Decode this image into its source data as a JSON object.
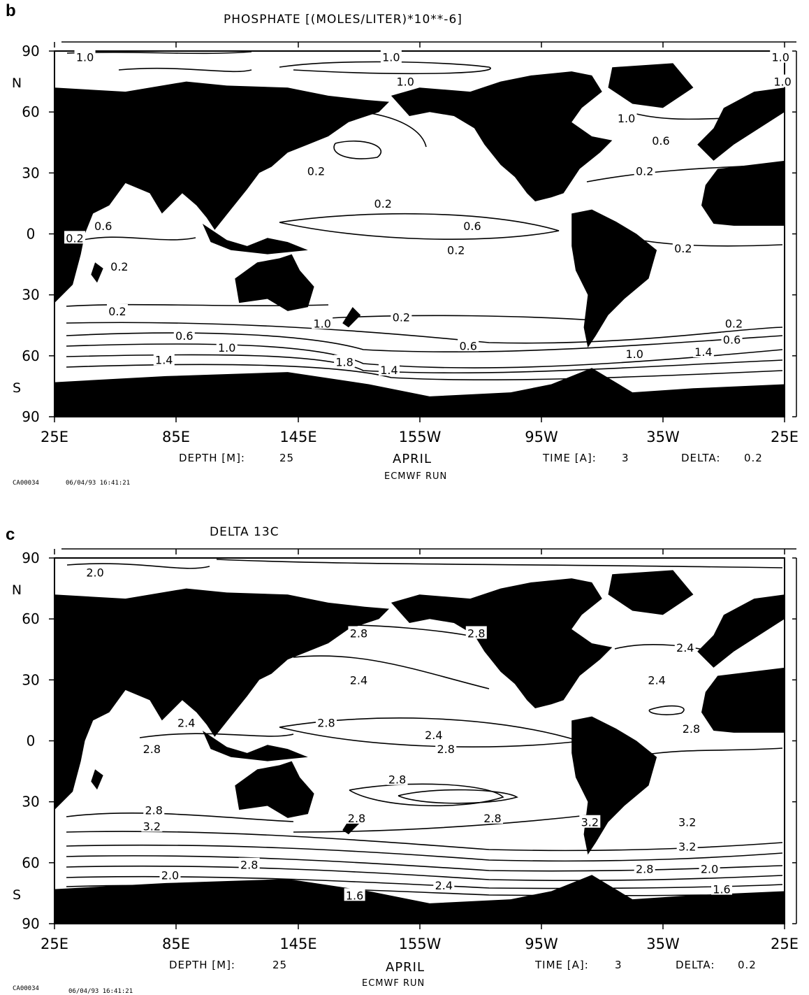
{
  "panels": [
    {
      "letter": "b",
      "title": "PHOSPHATE [(MOLES/LITER)*10**-6]",
      "footer": {
        "depth_label": "DEPTH [M]:",
        "depth_value": "25",
        "month": "APRIL",
        "time_label": "TIME [A]:",
        "time_value": "3",
        "delta_label": "DELTA:",
        "delta_value": "0.2",
        "run": "ECMWF RUN",
        "code": "CA00034",
        "timestamp": "06/04/93  16:41:21"
      }
    },
    {
      "letter": "c",
      "title": "DELTA 13C",
      "footer": {
        "depth_label": "DEPTH [M]:",
        "depth_value": "25",
        "month": "APRIL",
        "time_label": "TIME [A]:",
        "time_value": "3",
        "delta_label": "DELTA:",
        "delta_value": "0.2",
        "run": "ECMWF RUN",
        "code": "CA00034",
        "timestamp": "06/04/93  16:41:21"
      }
    }
  ],
  "chart_data": [
    {
      "type": "heatmap",
      "title": "PHOSPHATE [(MOLES/LITER)*10**-6]",
      "variable": "phosphate",
      "contour_interval": 0.2,
      "x_ticks": [
        "25E",
        "85E",
        "145E",
        "155W",
        "95W",
        "35W",
        "25E"
      ],
      "y_ticks": [
        "90",
        "60",
        "30",
        "0",
        "30",
        "60",
        "90"
      ],
      "y_hemisphere_labels": [
        "N",
        "S"
      ],
      "land_color": "#000000",
      "contour_labels": [
        {
          "lon": "40E",
          "lat": 87,
          "value": "1.0"
        },
        {
          "lon": "169W",
          "lat": 87,
          "value": "1.0"
        },
        {
          "lon": "23E",
          "lat": 87,
          "value": "1.0"
        },
        {
          "lon": "162W",
          "lat": 75,
          "value": "1.0"
        },
        {
          "lon": "24E",
          "lat": 75,
          "value": "1.0"
        },
        {
          "lon": "53W",
          "lat": 57,
          "value": "1.0"
        },
        {
          "lon": "36W",
          "lat": 46,
          "value": "0.6"
        },
        {
          "lon": "154E",
          "lat": 31,
          "value": "0.2"
        },
        {
          "lon": "44W",
          "lat": 31,
          "value": "0.2"
        },
        {
          "lon": "173W",
          "lat": 15,
          "value": "0.2"
        },
        {
          "lon": "49E",
          "lat": 4,
          "value": "0.6"
        },
        {
          "lon": "129W",
          "lat": 4,
          "value": "0.6"
        },
        {
          "lon": "35E",
          "lat": -2,
          "value": "0.2"
        },
        {
          "lon": "25W",
          "lat": -7,
          "value": "0.2"
        },
        {
          "lon": "137W",
          "lat": -8,
          "value": "0.2"
        },
        {
          "lon": "57E",
          "lat": -16,
          "value": "0.2"
        },
        {
          "lon": "56E",
          "lat": -38,
          "value": "0.2"
        },
        {
          "lon": "164W",
          "lat": -41,
          "value": "0.2"
        },
        {
          "lon": "0E",
          "lat": -44,
          "value": "0.2"
        },
        {
          "lon": "157E",
          "lat": -44,
          "value": "1.0"
        },
        {
          "lon": "89E",
          "lat": -50,
          "value": "0.6"
        },
        {
          "lon": "1W",
          "lat": -52,
          "value": "0.6"
        },
        {
          "lon": "131W",
          "lat": -55,
          "value": "0.6"
        },
        {
          "lon": "110E",
          "lat": -56,
          "value": "1.0"
        },
        {
          "lon": "49W",
          "lat": -59,
          "value": "1.0"
        },
        {
          "lon": "15W",
          "lat": -58,
          "value": "1.4"
        },
        {
          "lon": "79E",
          "lat": -62,
          "value": "1.4"
        },
        {
          "lon": "168E",
          "lat": -63,
          "value": "1.8"
        },
        {
          "lon": "170W",
          "lat": -67,
          "value": "1.4"
        }
      ]
    },
    {
      "type": "heatmap",
      "title": "DELTA 13C",
      "variable": "delta13C",
      "contour_interval": 0.2,
      "x_ticks": [
        "25E",
        "85E",
        "145E",
        "155W",
        "95W",
        "35W",
        "25E"
      ],
      "y_ticks": [
        "90",
        "60",
        "30",
        "0",
        "30",
        "60",
        "90"
      ],
      "y_hemisphere_labels": [
        "N",
        "S"
      ],
      "land_color": "#000000",
      "contour_labels": [
        {
          "lon": "45E",
          "lat": 83,
          "value": "2.0"
        },
        {
          "lon": "175E",
          "lat": 53,
          "value": "2.8"
        },
        {
          "lon": "127W",
          "lat": 53,
          "value": "2.8"
        },
        {
          "lon": "24W",
          "lat": 46,
          "value": "2.4"
        },
        {
          "lon": "175E",
          "lat": 30,
          "value": "2.4"
        },
        {
          "lon": "38W",
          "lat": 30,
          "value": "2.4"
        },
        {
          "lon": "21W",
          "lat": 6,
          "value": "2.8"
        },
        {
          "lon": "90E",
          "lat": 9,
          "value": "2.4"
        },
        {
          "lon": "159E",
          "lat": 9,
          "value": "2.8"
        },
        {
          "lon": "148W",
          "lat": 3,
          "value": "2.4"
        },
        {
          "lon": "142W",
          "lat": -4,
          "value": "2.8"
        },
        {
          "lon": "73E",
          "lat": -4,
          "value": "2.8"
        },
        {
          "lon": "166W",
          "lat": -19,
          "value": "2.8"
        },
        {
          "lon": "74E",
          "lat": -34,
          "value": "2.8"
        },
        {
          "lon": "174E",
          "lat": -38,
          "value": "2.8"
        },
        {
          "lon": "119W",
          "lat": -38,
          "value": "2.8"
        },
        {
          "lon": "71W",
          "lat": -40,
          "value": "3.2"
        },
        {
          "lon": "23W",
          "lat": -40,
          "value": "3.2"
        },
        {
          "lon": "73E",
          "lat": -42,
          "value": "3.2"
        },
        {
          "lon": "23W",
          "lat": -52,
          "value": "3.2"
        },
        {
          "lon": "121E",
          "lat": -61,
          "value": "2.8"
        },
        {
          "lon": "44W",
          "lat": -63,
          "value": "2.8"
        },
        {
          "lon": "12W",
          "lat": -63,
          "value": "2.0"
        },
        {
          "lon": "82E",
          "lat": -66,
          "value": "2.0"
        },
        {
          "lon": "143W",
          "lat": -71,
          "value": "2.4"
        },
        {
          "lon": "6W",
          "lat": -73,
          "value": "1.6"
        },
        {
          "lon": "173E",
          "lat": -76,
          "value": "1.6"
        }
      ]
    }
  ]
}
